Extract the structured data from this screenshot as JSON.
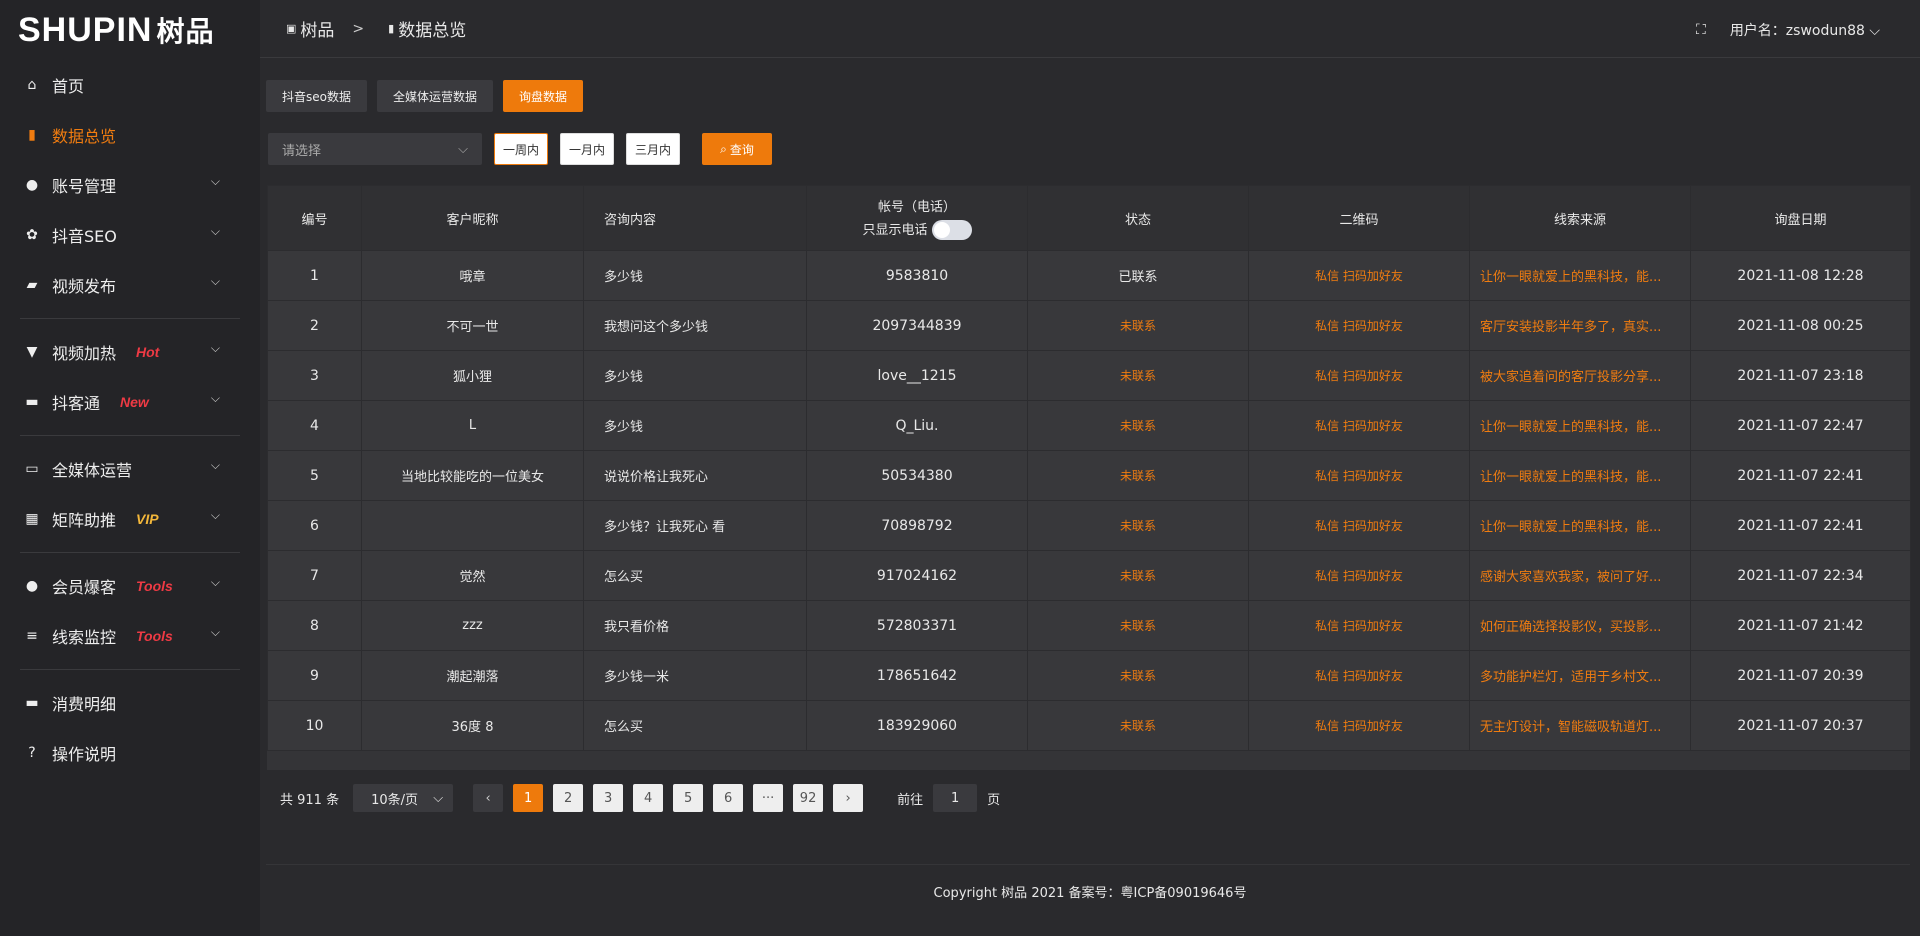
{
  "brand": {
    "logo_text": "SHUPIN",
    "logo_cn": "树品"
  },
  "sidebar": {
    "items": [
      {
        "label": "首页",
        "icon": "home-icon"
      },
      {
        "label": "数据总览",
        "icon": "bar-chart-icon",
        "active": true
      },
      {
        "label": "账号管理",
        "icon": "user-icon",
        "chevron": true
      },
      {
        "label": "抖音SEO",
        "icon": "gear-icon",
        "chevron": true
      },
      {
        "label": "视频发布",
        "icon": "camera-icon",
        "chevron": true
      },
      {
        "label": "视频加热",
        "icon": "sign-icon",
        "badge": "Hot",
        "chevron": true
      },
      {
        "label": "抖客通",
        "icon": "chat-icon",
        "badge": "New",
        "chevron": true
      },
      {
        "label": "全媒体运营",
        "icon": "monitor-icon",
        "chevron": true
      },
      {
        "label": "矩阵助推",
        "icon": "grid-icon",
        "badge": "VIP",
        "chevron": true
      },
      {
        "label": "会员爆客",
        "icon": "user-icon",
        "badge": "Tools",
        "chevron": true
      },
      {
        "label": "线索监控",
        "icon": "sliders-icon",
        "badge": "Tools",
        "chevron": true
      },
      {
        "label": "消费明细",
        "icon": "wallet-icon"
      },
      {
        "label": "操作说明",
        "icon": "help-icon"
      }
    ]
  },
  "header": {
    "crumb_root": "树品",
    "crumb_sep": ">",
    "crumb_current": "数据总览",
    "username_label": "用户名：zswodun88"
  },
  "tabs": [
    "抖音seo数据",
    "全媒体运营数据",
    "询盘数据"
  ],
  "filters": {
    "select_placeholder": "请选择",
    "ranges": [
      "一周内",
      "一月内",
      "三月内"
    ],
    "query": "查询"
  },
  "table": {
    "columns": [
      "编号",
      "客户昵称",
      "咨询内容",
      "帐号（电话）",
      "状态",
      "二维码",
      "线索来源",
      "询盘日期"
    ],
    "phone_toggle_label": "只显示电话",
    "rows": [
      {
        "id": "1",
        "name": "哦章",
        "content": "多少钱",
        "account": "9583810",
        "status": "已联系",
        "qr": "私信 扫码加好友",
        "source": "让你一眼就爱上的黑科技，能...",
        "date": "2021-11-08 12:28"
      },
      {
        "id": "2",
        "name": "不可一世",
        "content": "我想问这个多少钱",
        "account": "2097344839",
        "status": "未联系",
        "qr": "私信 扫码加好友",
        "source": "客厅安装投影半年多了，真实...",
        "date": "2021-11-08 00:25"
      },
      {
        "id": "3",
        "name": "狐小狸",
        "content": "多少钱",
        "account": "love__1215",
        "status": "未联系",
        "qr": "私信 扫码加好友",
        "source": "被大家追着问的客厅投影分享...",
        "date": "2021-11-07 23:18"
      },
      {
        "id": "4",
        "name": "L",
        "content": "多少钱",
        "account": "Q_Liu.",
        "status": "未联系",
        "qr": "私信 扫码加好友",
        "source": "让你一眼就爱上的黑科技，能...",
        "date": "2021-11-07 22:47"
      },
      {
        "id": "5",
        "name": "当地比较能吃的一位美女",
        "content": "说说价格让我死心",
        "account": "50534380",
        "status": "未联系",
        "qr": "私信 扫码加好友",
        "source": "让你一眼就爱上的黑科技，能...",
        "date": "2021-11-07 22:41"
      },
      {
        "id": "6",
        "name": "",
        "content": "多少钱？让我死心 看",
        "account": "70898792",
        "status": "未联系",
        "qr": "私信 扫码加好友",
        "source": "让你一眼就爱上的黑科技，能...",
        "date": "2021-11-07 22:41"
      },
      {
        "id": "7",
        "name": "觉然",
        "content": "怎么买",
        "account": "917024162",
        "status": "未联系",
        "qr": "私信 扫码加好友",
        "source": "感谢大家喜欢我家，被问了好...",
        "date": "2021-11-07 22:34"
      },
      {
        "id": "8",
        "name": "zzz",
        "content": "我只看价格",
        "account": "572803371",
        "status": "未联系",
        "qr": "私信 扫码加好友",
        "source": "如何正确选择投影仪，买投影...",
        "date": "2021-11-07 21:42"
      },
      {
        "id": "9",
        "name": "潮起潮落",
        "content": "多少钱一米",
        "account": "178651642",
        "status": "未联系",
        "qr": "私信 扫码加好友",
        "source": "多功能护栏灯，适用于乡村文...",
        "date": "2021-11-07 20:39"
      },
      {
        "id": "10",
        "name": "36度 8",
        "content": "怎么买",
        "account": "183929060",
        "status": "未联系",
        "qr": "私信 扫码加好友",
        "source": "无主灯设计，智能磁吸轨道灯...",
        "date": "2021-11-07 20:37"
      }
    ]
  },
  "pagination": {
    "total": "共 911 条",
    "page_size": "10条/页",
    "pages": [
      "1",
      "2",
      "3",
      "4",
      "5",
      "6",
      "···",
      "92"
    ],
    "current": "1",
    "goto_label": "前往",
    "goto_value": "1",
    "page_suffix": "页"
  },
  "footer": {
    "copyright": "Copyright 树品 2021 备案号：粤ICP备09019646号"
  },
  "colors": {
    "accent": "#ee7a0c",
    "badge_red": "#ee3a44",
    "badge_vip": "#f3b73a"
  }
}
